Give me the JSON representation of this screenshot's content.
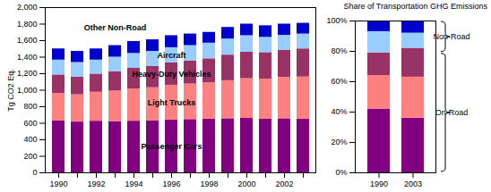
{
  "chart_data": [
    {
      "type": "bar",
      "stacked": true,
      "y_label": "Tg CO2 Eq.",
      "categories": [
        1990,
        null,
        1992,
        null,
        1994,
        null,
        1996,
        null,
        1998,
        null,
        2000,
        null,
        2002,
        null
      ],
      "ylim": [
        0,
        2000
      ],
      "yticks": [
        0,
        200,
        400,
        600,
        800,
        {
          "value": 1000,
          "label": "1,000"
        },
        {
          "value": 1200,
          "label": "1,200"
        },
        {
          "value": 1400,
          "label": "1,400"
        },
        {
          "value": 1600,
          "label": "1,600"
        },
        {
          "value": 1800,
          "label": "1,800"
        },
        {
          "value": 2000,
          "label": "2,000"
        }
      ],
      "series": [
        {
          "name": "Passenger Cars",
          "color": "#800080",
          "values": [
            630,
            615,
            625,
            620,
            625,
            630,
            640,
            645,
            650,
            655,
            660,
            650,
            655,
            650
          ]
        },
        {
          "name": "Light Trucks",
          "color": "#ff8080",
          "values": [
            330,
            330,
            350,
            370,
            390,
            400,
            420,
            430,
            440,
            460,
            480,
            485,
            500,
            510
          ]
        },
        {
          "name": "Heavy-Duty Vehicles",
          "color": "#993366",
          "values": [
            225,
            215,
            220,
            235,
            250,
            260,
            270,
            280,
            290,
            310,
            320,
            320,
            330,
            340
          ]
        },
        {
          "name": "Aircraft",
          "color": "#99ccff",
          "values": [
            180,
            175,
            170,
            175,
            180,
            180,
            185,
            185,
            190,
            195,
            200,
            185,
            180,
            180
          ]
        },
        {
          "name": "Other Non-Road",
          "color": "#0000cc",
          "values": [
            135,
            135,
            135,
            140,
            145,
            140,
            145,
            140,
            130,
            140,
            140,
            140,
            135,
            130
          ]
        }
      ]
    },
    {
      "type": "bar",
      "stacked": true,
      "title": "Share of Transportation GHG Emissions",
      "categories": [
        1990,
        2003
      ],
      "ylim": [
        0,
        100
      ],
      "yticks": [
        {
          "value": 0,
          "label": "0%"
        },
        {
          "value": 20,
          "label": "20%"
        },
        {
          "value": 40,
          "label": "40%"
        },
        {
          "value": 60,
          "label": "60%"
        },
        {
          "value": 80,
          "label": "80%"
        },
        {
          "value": 100,
          "label": "100%"
        }
      ],
      "series": [
        {
          "name": "Passenger Cars",
          "color": "#800080",
          "values": [
            42,
            36
          ]
        },
        {
          "name": "Light Trucks",
          "color": "#ff8080",
          "values": [
            22,
            27
          ]
        },
        {
          "name": "Heavy-Duty Vehicles",
          "color": "#993366",
          "values": [
            15,
            19
          ]
        },
        {
          "name": "Aircraft",
          "color": "#99ccff",
          "values": [
            14,
            10
          ]
        },
        {
          "name": "Other Non-Road",
          "color": "#0000cc",
          "values": [
            7,
            8
          ]
        }
      ],
      "annotations": [
        {
          "text": "Non-Road",
          "series": [
            "Aircraft",
            "Other Non-Road"
          ]
        },
        {
          "text": "On-Road",
          "series": [
            "Passenger Cars",
            "Light Trucks",
            "Heavy-Duty Vehicles"
          ]
        }
      ]
    }
  ]
}
